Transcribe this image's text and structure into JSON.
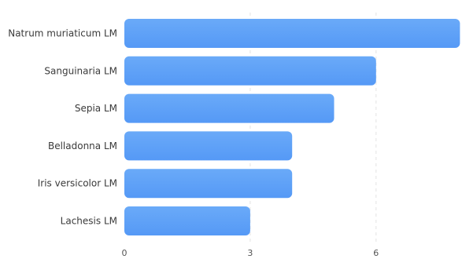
{
  "chart_data": {
    "type": "bar",
    "orientation": "horizontal",
    "categories": [
      "Natrum muriaticum LM",
      "Sanguinaria LM",
      "Sepia LM",
      "Belladonna LM",
      "Iris versicolor LM",
      "Lachesis LM"
    ],
    "values": [
      8,
      6,
      5,
      4,
      4,
      3
    ],
    "x_ticks": [
      0,
      3,
      6
    ],
    "xlim": [
      0,
      8
    ],
    "grid": "vertical dashed",
    "legend": "none",
    "colors": {
      "bar_top": "#6aaaf8",
      "bar_bottom": "#5599f6"
    }
  }
}
